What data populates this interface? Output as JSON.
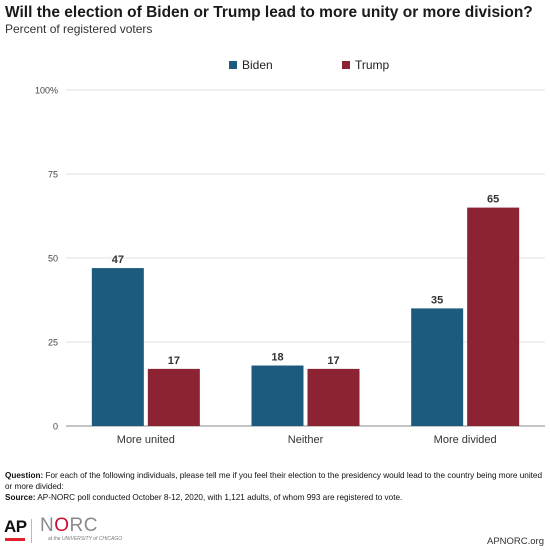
{
  "title": "Will the election of Biden or Trump lead to more unity or more division?",
  "subtitle": "Percent of registered voters",
  "colors": {
    "biden": "#1d5b7e",
    "trump": "#8b2332",
    "grid": "#d9d9d9",
    "axis": "#888888"
  },
  "chart_data": {
    "type": "bar",
    "categories": [
      "More united",
      "Neither",
      "More divided"
    ],
    "series": [
      {
        "name": "Biden",
        "values": [
          47,
          18,
          35
        ]
      },
      {
        "name": "Trump",
        "values": [
          17,
          17,
          65
        ]
      }
    ],
    "ylim": [
      0,
      100
    ],
    "yticks": [
      0,
      25,
      50,
      75,
      100
    ],
    "ytick_labels": [
      "0",
      "25",
      "50",
      "75",
      "100%"
    ],
    "legend": "top-center",
    "grid": true
  },
  "footer": {
    "question_label": "Question:",
    "question_text": "For each of the following individuals, please tell me if you feel their election to the presidency would lead to the country being more united or more divided:",
    "source_label": "Source:",
    "source_text": "AP-NORC poll conducted October 8-12, 2020, with 1,121 adults, of whom 993 are registered to vote."
  },
  "logos": {
    "ap": "AP",
    "norc_n": "N",
    "norc_o": "O",
    "norc_rest": "RC",
    "uc": "at the UNIVERSITY of CHICAGO"
  },
  "url": "APNORC.org"
}
